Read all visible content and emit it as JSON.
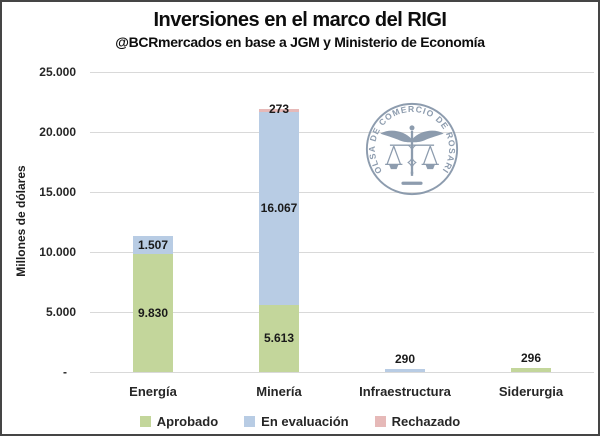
{
  "chart_data": {
    "type": "bar",
    "stacked": true,
    "title": "Inversiones en el marco del RIGI",
    "subtitle": "@BCRmercados en base a JGM y Ministerio de Economía",
    "categories": [
      "Energía",
      "Minería",
      "Infraestructura",
      "Siderurgia"
    ],
    "series": [
      {
        "name": "Aprobado",
        "color": "#c3d69b",
        "values": [
          9830,
          5613,
          0,
          296
        ]
      },
      {
        "name": "En evaluación",
        "color": "#b8cce4",
        "values": [
          1507,
          16067,
          290,
          0
        ]
      },
      {
        "name": "Rechazado",
        "color": "#e6b9b8",
        "values": [
          0,
          273,
          0,
          0
        ]
      }
    ],
    "totals": [
      11337,
      21953,
      290,
      296
    ],
    "data_labels": [
      "9.830",
      "1.507",
      "5.613",
      "16.067",
      "273",
      "290",
      "296"
    ],
    "xlabel": "",
    "ylabel": "Millones de dólares",
    "ylim": [
      0,
      25000
    ],
    "ytick_step": 5000,
    "ytick_labels": [
      "-",
      "5.000",
      "10.000",
      "15.000",
      "20.000",
      "25.000"
    ],
    "grid": true,
    "legend_position": "bottom"
  },
  "logo": {
    "ring_text": "BOLSA DE COMERCIO DE ROSARIO",
    "color": "#8494a8"
  },
  "style": {
    "border_color": "#454545",
    "gridline_color": "#d9d9d9",
    "background": "#ffffff"
  }
}
